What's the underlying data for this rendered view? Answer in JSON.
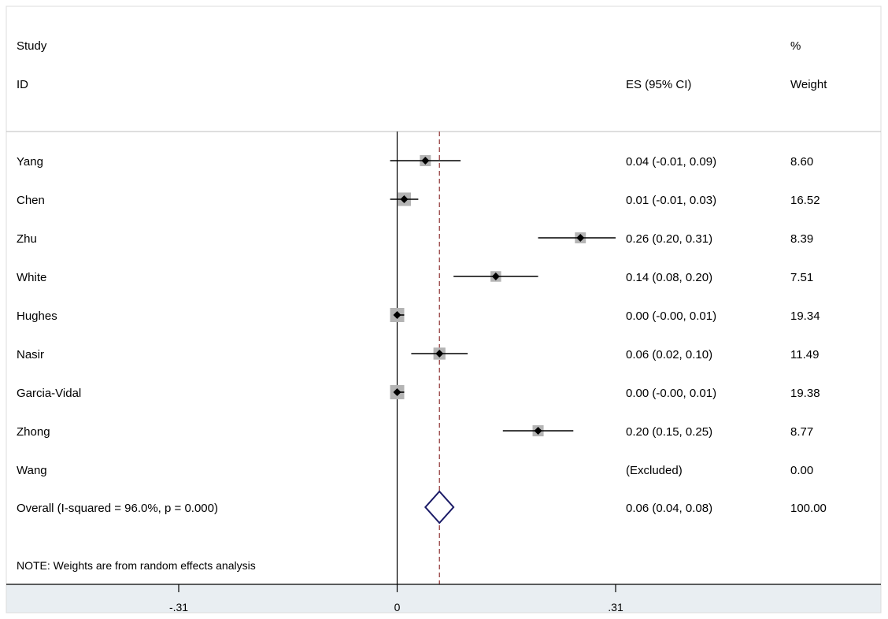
{
  "header": {
    "study_label": "Study",
    "id_label": "ID",
    "es_label": "ES (95% CI)",
    "pct_label": "%",
    "weight_label": "Weight"
  },
  "chart_data": {
    "type": "forest",
    "studies": [
      {
        "name": "Yang",
        "es": 0.04,
        "lo": -0.01,
        "hi": 0.09,
        "es_text": "0.04 (-0.01, 0.09)",
        "weight": 8.6,
        "weight_text": "8.60"
      },
      {
        "name": "Chen",
        "es": 0.01,
        "lo": -0.01,
        "hi": 0.03,
        "es_text": "0.01 (-0.01, 0.03)",
        "weight": 16.52,
        "weight_text": "16.52"
      },
      {
        "name": "Zhu",
        "es": 0.26,
        "lo": 0.2,
        "hi": 0.31,
        "es_text": "0.26 (0.20, 0.31)",
        "weight": 8.39,
        "weight_text": "8.39"
      },
      {
        "name": "White",
        "es": 0.14,
        "lo": 0.08,
        "hi": 0.2,
        "es_text": "0.14 (0.08, 0.20)",
        "weight": 7.51,
        "weight_text": "7.51"
      },
      {
        "name": "Hughes",
        "es": 0.0,
        "lo": -0.0,
        "hi": 0.01,
        "es_text": "0.00 (-0.00, 0.01)",
        "weight": 19.34,
        "weight_text": "19.34"
      },
      {
        "name": "Nasir",
        "es": 0.06,
        "lo": 0.02,
        "hi": 0.1,
        "es_text": "0.06 (0.02, 0.10)",
        "weight": 11.49,
        "weight_text": "11.49"
      },
      {
        "name": "Garcia-Vidal",
        "es": 0.0,
        "lo": -0.0,
        "hi": 0.01,
        "es_text": "0.00 (-0.00, 0.01)",
        "weight": 19.38,
        "weight_text": "19.38"
      },
      {
        "name": "Zhong",
        "es": 0.2,
        "lo": 0.15,
        "hi": 0.25,
        "es_text": "0.20 (0.15, 0.25)",
        "weight": 8.77,
        "weight_text": "8.77"
      },
      {
        "name": "Wang",
        "es": null,
        "lo": null,
        "hi": null,
        "es_text": "(Excluded)",
        "weight": 0.0,
        "weight_text": "0.00"
      }
    ],
    "overall": {
      "label": "Overall  (I-squared = 96.0%, p = 0.000)",
      "es": 0.06,
      "lo": 0.04,
      "hi": 0.08,
      "es_text": "0.06 (0.04, 0.08)",
      "weight_text": "100.00"
    },
    "note": "NOTE: Weights are from random effects analysis",
    "x_ticks": [
      {
        "value": -0.31,
        "label": "-.31"
      },
      {
        "value": 0,
        "label": "0"
      },
      {
        "value": 0.31,
        "label": ".31"
      }
    ],
    "xlim": [
      -0.31,
      0.31
    ],
    "null_line": 0,
    "reference_line": 0.06,
    "colors": {
      "marker": "#000000",
      "weight_box": "#b4b4b4",
      "diamond": "#1a1a66",
      "reference_line": "#8b2c2c",
      "axis_band": "#e9eef2",
      "divider": "#bdbdbd"
    }
  }
}
